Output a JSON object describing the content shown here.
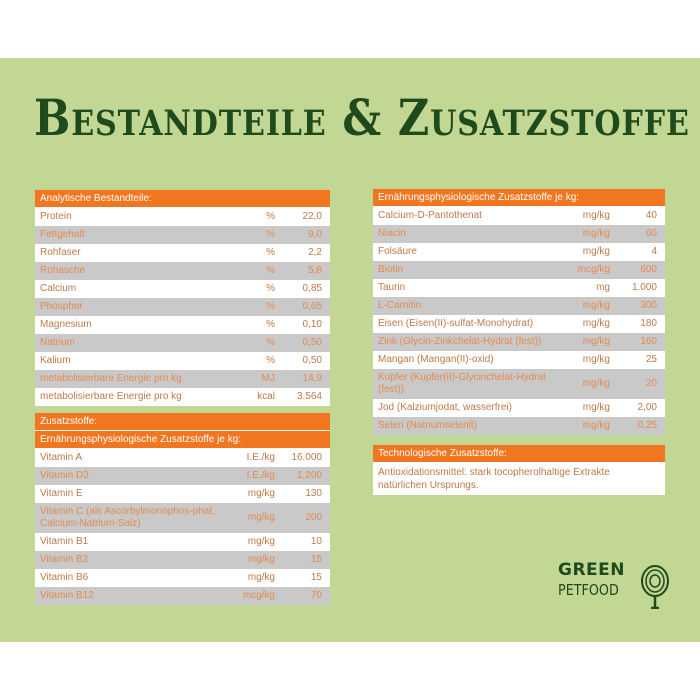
{
  "title": "Bestandteile & Zusatzstoffe",
  "analytic": {
    "header": "Analytische Bestandteile:",
    "rows": [
      [
        "Protein",
        "%",
        "22,0"
      ],
      [
        "Fettgehalt",
        "%",
        "9,0"
      ],
      [
        "Rohfaser",
        "%",
        "2,2"
      ],
      [
        "Rohasche",
        "%",
        "5,8"
      ],
      [
        "Calcium",
        "%",
        "0,85"
      ],
      [
        "Phosphor",
        "%",
        "0,65"
      ],
      [
        "Magnesium",
        "%",
        "0,10"
      ],
      [
        "Natrium",
        "%",
        "0,50"
      ],
      [
        "Kalium",
        "%",
        "0,50"
      ],
      [
        "metabolisierbare Energie pro kg",
        "MJ",
        "14,9"
      ],
      [
        "metabolisierbare Energie pro kg",
        "kcal",
        "3.564"
      ]
    ]
  },
  "additives": {
    "header": "Zusatzstoffe:",
    "subheader": "Ernährungsphysiologische Zusatzstoffe je kg:",
    "rows": [
      [
        "Vitamin A",
        "I.E./kg",
        "16.000"
      ],
      [
        "Vitamin D3",
        "I.E./kg",
        "1.200"
      ],
      [
        "Vitamin E",
        "mg/kg",
        "130"
      ],
      [
        "Vitamin C (als Ascorbylmonophos-phat, Calcium-Natrium-Salz)",
        "mg/kg",
        "200"
      ],
      [
        "Vitamin B1",
        "mg/kg",
        "10"
      ],
      [
        "Vitamin B2",
        "mg/kg",
        "15"
      ],
      [
        "Vitamin B6",
        "mg/kg",
        "15"
      ],
      [
        "Vitamin B12",
        "mcg/kg",
        "70"
      ]
    ]
  },
  "nutritional": {
    "header": "Ernährungsphysiologische Zusatzstoffe je kg:",
    "rows": [
      [
        "Calcium-D-Pantothenat",
        "mg/kg",
        "40"
      ],
      [
        "Niacin",
        "mg/kg",
        "60"
      ],
      [
        "Folsäure",
        "mg/kg",
        "4"
      ],
      [
        "Biotin",
        "mcg/kg",
        "600"
      ],
      [
        "Taurin",
        "mg",
        "1.000"
      ],
      [
        "L-Carnitin",
        "mg/kg",
        "300"
      ],
      [
        "Eisen (Eisen(II)-sulfat-Monohydrat)",
        "mg/kg",
        "180"
      ],
      [
        "Zink (Glycin-Zinkchelat-Hydrat (fest))",
        "mg/kg",
        "160"
      ],
      [
        "Mangan (Mangan(II)-oxid)",
        "mg/kg",
        "25"
      ],
      [
        "Kupfer (Kupfer(II)-Glycinchelat-Hydrat (fest))",
        "mg/kg",
        "20"
      ],
      [
        "Jod (Kalziumjodat, wasserfrei)",
        "mg/kg",
        "2,00"
      ],
      [
        "Selen (Natriumselenit)",
        "mg/kg",
        "0,25"
      ]
    ]
  },
  "technological": {
    "header": "Technologische Zusatzstoffe:",
    "text": "Antioxidationsmittel: stark tocopherolhaltige Extrakte natürlichen Ursprungs."
  },
  "logo": {
    "line1": "GREEN",
    "line2": "PETFOOD"
  },
  "colors": {
    "background": "#c3d794",
    "header": "#f27620",
    "title": "#1e4a1c"
  }
}
